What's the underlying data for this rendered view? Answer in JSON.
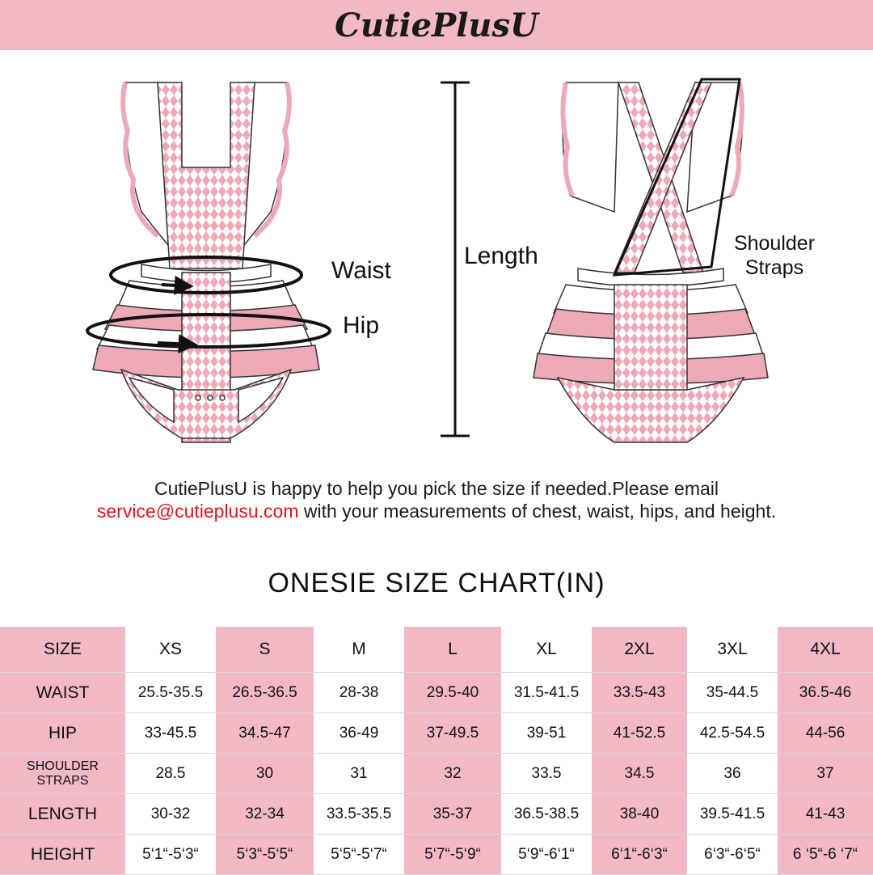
{
  "brand": {
    "logo_text": "CutiePlusU"
  },
  "illustration": {
    "front_labels": {
      "waist": "Waist",
      "hip": "Hip"
    },
    "length_label": "Length",
    "back_labels": {
      "shoulder_straps_line1": "Shoulder",
      "shoulder_straps_line2": "Straps"
    }
  },
  "help": {
    "line1": "CutiePlusU is happy to help you pick the size if needed.Please email",
    "email": "service@cutieplusu.com",
    "line2_rest": " with your measurements of chest, waist, hips, and height."
  },
  "chart": {
    "title": "ONESIE  SIZE  CHART(IN)",
    "header_label": "SIZE",
    "sizes": [
      "XS",
      "S",
      "M",
      "L",
      "XL",
      "2XL",
      "3XL",
      "4XL"
    ],
    "rows": [
      {
        "label": "WAIST",
        "values": [
          "25.5-35.5",
          "26.5-36.5",
          "28-38",
          "29.5-40",
          "31.5-41.5",
          "33.5-43",
          "35-44.5",
          "36.5-46"
        ]
      },
      {
        "label": "HIP",
        "values": [
          "33-45.5",
          "34.5-47",
          "36-49",
          "37-49.5",
          "39-51",
          "41-52.5",
          "42.5-54.5",
          "44-56"
        ]
      },
      {
        "label_line1": "SHOULDER",
        "label_line2": "STRAPS",
        "values": [
          "28.5",
          "30",
          "31",
          "32",
          "33.5",
          "34.5",
          "36",
          "37"
        ]
      },
      {
        "label": "LENGTH",
        "values": [
          "30-32",
          "32-34",
          "33.5-35.5",
          "35-37",
          "36.5-38.5",
          "38-40",
          "39.5-41.5",
          "41-43"
        ]
      },
      {
        "label": "HEIGHT",
        "values": [
          "5‘1“-5‘3“",
          "5‘3“-5‘5“",
          "5‘5“-5‘7“",
          "5‘7“-5‘9“",
          "5‘9“-6‘1“",
          "6‘1“-6‘3“",
          "6‘3“-6‘5“",
          "6 ‘5“-6 ‘7“"
        ]
      }
    ]
  },
  "colors": {
    "banner_pink": "#f2b8c4",
    "email_red": "#e0141e",
    "garment_pink": "#eda9b6"
  }
}
